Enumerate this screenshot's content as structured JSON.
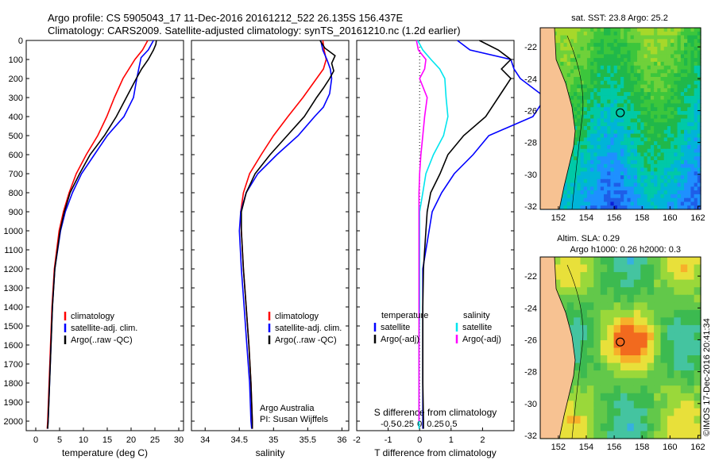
{
  "header": {
    "line1": "Argo profile: CS 5905043_17 11-Dec-2016 20161212_522 26.135S 156.437E",
    "line2": "Climatology: CARS2009. Satellite-adjusted climatology: synTS_20161210.nc (1.2d earlier)"
  },
  "credit": "Argo Australia",
  "pi": "PI: Susan Wijffels",
  "imos_stamp": "©IMOS 17-Dec-2016 20:41:34",
  "colors": {
    "climatology": "#ff0000",
    "satellite": "#0000ff",
    "argo": "#000000",
    "sat_s": "#00e5ee",
    "argo_s": "#ff00ff"
  },
  "chart_data": [
    {
      "type": "line",
      "id": "temperature",
      "xlabel": "temperature (deg C)",
      "ylabel": "",
      "xlim": [
        -2,
        31
      ],
      "ylim": [
        2050,
        0
      ],
      "xticks": [
        "0",
        "5",
        "10",
        "15",
        "20",
        "25",
        "30"
      ],
      "yticks": [
        "0",
        "100",
        "200",
        "300",
        "400",
        "500",
        "600",
        "700",
        "800",
        "900",
        "1000",
        "1100",
        "1200",
        "1300",
        "1400",
        "1500",
        "1600",
        "1700",
        "1800",
        "1900",
        "2000"
      ],
      "legend": [
        "climatology",
        "satellite-adj. clim.",
        "Argo(..raw -QC)"
      ],
      "series": [
        {
          "name": "climatology",
          "depth": [
            0,
            50,
            100,
            200,
            300,
            400,
            500,
            600,
            700,
            800,
            900,
            1000,
            1200,
            1400,
            1600,
            1800,
            2000,
            2040
          ],
          "values": [
            23.5,
            22.4,
            20.8,
            18.3,
            16.5,
            14.9,
            13.0,
            10.6,
            8.5,
            7.0,
            5.8,
            4.9,
            3.9,
            3.4,
            3.1,
            2.8,
            2.5,
            2.4
          ]
        },
        {
          "name": "satellite-adj. clim.",
          "depth": [
            0,
            50,
            90,
            150,
            200,
            300,
            400,
            500,
            600,
            700,
            800,
            900,
            1000,
            1200,
            1400,
            1600,
            1800,
            2000,
            2040
          ],
          "values": [
            24.7,
            23.6,
            22.1,
            21.6,
            21.2,
            20.5,
            18.5,
            15.0,
            12.3,
            9.6,
            7.7,
            6.2,
            5.2,
            4.0,
            3.5,
            3.2,
            2.9,
            2.6,
            2.5
          ]
        },
        {
          "name": "Argo(..raw -QC)",
          "depth": [
            0,
            20,
            50,
            100,
            150,
            200,
            300,
            400,
            500,
            600,
            700,
            800,
            900,
            1000,
            1200,
            1400,
            1600,
            1800,
            2000,
            2040
          ],
          "values": [
            25.3,
            25.2,
            24.7,
            23.6,
            22.2,
            21.1,
            19.0,
            16.9,
            14.4,
            11.4,
            9.2,
            7.2,
            6.0,
            5.1,
            4.0,
            3.5,
            3.2,
            2.9,
            2.6,
            2.5
          ]
        }
      ]
    },
    {
      "type": "line",
      "id": "salinity",
      "xlabel": "salinity",
      "ylabel": "",
      "xlim": [
        33.8,
        36.1
      ],
      "ylim": [
        2050,
        0
      ],
      "xticks": [
        "34",
        "34.5",
        "35",
        "35.5",
        "36"
      ],
      "legend": [
        "climatology",
        "satellite-adj. clim.",
        "Argo(..raw -QC)"
      ],
      "series": [
        {
          "name": "climatology",
          "depth": [
            0,
            50,
            100,
            150,
            200,
            300,
            400,
            500,
            600,
            700,
            800,
            900,
            1000,
            1200,
            1400,
            1600,
            1800,
            2000,
            2040
          ],
          "values": [
            35.72,
            35.74,
            35.77,
            35.73,
            35.63,
            35.43,
            35.21,
            35.0,
            34.82,
            34.65,
            34.56,
            34.52,
            34.53,
            34.56,
            34.6,
            34.64,
            34.67,
            34.69,
            34.69
          ]
        },
        {
          "name": "satellite-adj. clim.",
          "depth": [
            0,
            50,
            100,
            150,
            200,
            280,
            350,
            400,
            500,
            600,
            700,
            800,
            900,
            1000,
            1200,
            1400,
            1600,
            1800,
            2000,
            2040
          ],
          "values": [
            35.69,
            35.72,
            35.78,
            35.83,
            35.85,
            35.82,
            35.73,
            35.6,
            35.36,
            35.05,
            34.77,
            34.6,
            34.52,
            34.5,
            34.53,
            34.57,
            34.61,
            34.65,
            34.67,
            34.68
          ]
        },
        {
          "name": "Argo(..raw -QC)",
          "depth": [
            0,
            40,
            80,
            120,
            160,
            200,
            250,
            300,
            400,
            500,
            600,
            700,
            800,
            900,
            1000,
            1200,
            1400,
            1600,
            1800,
            2000,
            2040
          ],
          "values": [
            35.68,
            35.75,
            35.9,
            35.85,
            35.88,
            35.82,
            35.73,
            35.63,
            35.45,
            35.2,
            34.95,
            34.73,
            34.6,
            34.53,
            34.53,
            34.56,
            34.6,
            34.64,
            34.67,
            34.69,
            34.69
          ]
        }
      ]
    },
    {
      "type": "line",
      "id": "differences",
      "xlabel": "T difference from climatology",
      "xlabel2": "S difference from climatology",
      "xlim": [
        -2,
        3
      ],
      "ylim": [
        2050,
        0
      ],
      "xticks": [
        "-2",
        "-1",
        "0",
        "1",
        "2"
      ],
      "xticks2": [
        "-0.5",
        "-0.25",
        "0",
        "0.25",
        "0.5"
      ],
      "legend_titles": [
        "temperature",
        "salinity"
      ],
      "legend": [
        "satellite",
        "Argo(-adj)",
        "satellite",
        "Argo(-adj)"
      ],
      "series": [
        {
          "name": "temperature satellite",
          "depth": [
            0,
            50,
            100,
            150,
            200,
            300,
            400,
            500,
            600,
            700,
            800,
            900,
            1000,
            1200,
            1400,
            1600,
            1800,
            2000,
            2040
          ],
          "values": [
            1.2,
            1.6,
            2.9,
            3.0,
            3.2,
            4.0,
            3.6,
            2.2,
            1.7,
            1.1,
            0.7,
            0.4,
            0.3,
            0.1,
            0.1,
            0.1,
            0.1,
            0.1,
            0.1
          ]
        },
        {
          "name": "temperature Argo(-adj)",
          "depth": [
            0,
            50,
            100,
            150,
            200,
            300,
            400,
            500,
            600,
            700,
            800,
            900,
            1000,
            1200,
            1400,
            1600,
            1800,
            2000,
            2040
          ],
          "values": [
            1.9,
            2.5,
            2.9,
            2.6,
            2.9,
            2.5,
            2.1,
            1.4,
            0.9,
            0.65,
            0.35,
            0.24,
            0.2,
            0.12,
            0.1,
            0.1,
            0.1,
            0.12,
            0.12
          ]
        },
        {
          "name": "salinity satellite",
          "depth": [
            0,
            50,
            100,
            150,
            200,
            300,
            400,
            500,
            600,
            700,
            800,
            900,
            1000,
            1200,
            1400,
            1600,
            1800,
            2000,
            2040
          ],
          "values": [
            -0.03,
            0.05,
            0.18,
            0.32,
            0.4,
            0.42,
            0.45,
            0.38,
            0.22,
            0.1,
            0.05,
            0.0,
            0.0,
            0.0,
            0.0,
            -0.01,
            -0.01,
            -0.01,
            -0.01
          ]
        },
        {
          "name": "salinity Argo(-adj)",
          "depth": [
            0,
            50,
            100,
            150,
            200,
            300,
            400,
            500,
            600,
            700,
            800,
            900,
            1000,
            1200,
            1400,
            1600,
            1800,
            2000
          ],
          "values": [
            -0.05,
            -0.02,
            0.1,
            0.08,
            0.0,
            0.12,
            0.08,
            0.05,
            0.02,
            0.0,
            -0.01,
            -0.01,
            -0.01,
            -0.01,
            -0.01,
            -0.01,
            -0.01,
            -0.01
          ]
        }
      ]
    },
    {
      "type": "heatmap",
      "id": "map-sst",
      "title": "sat. SST: 23.8  Argo: 25.2",
      "xlim": [
        150.7,
        162.2
      ],
      "ylim": [
        -32.2,
        -20.8
      ],
      "xticks": [
        "152",
        "154",
        "156",
        "158",
        "160",
        "162"
      ],
      "yticks": [
        "-22",
        "-24",
        "-26",
        "-28",
        "-30",
        "-32"
      ],
      "marker": {
        "lon": 156.437,
        "lat": -26.135
      }
    },
    {
      "type": "heatmap",
      "id": "map-sla",
      "title": "Altim. SLA: 0.29",
      "title2": "Argo h1000: 0.26 h2000: 0.3",
      "xlim": [
        150.7,
        162.2
      ],
      "ylim": [
        -32.2,
        -20.8
      ],
      "xticks": [
        "152",
        "154",
        "156",
        "158",
        "160",
        "162"
      ],
      "yticks": [
        "-22",
        "-24",
        "-26",
        "-28",
        "-30",
        "-32"
      ],
      "marker": {
        "lon": 156.437,
        "lat": -26.135
      }
    }
  ]
}
